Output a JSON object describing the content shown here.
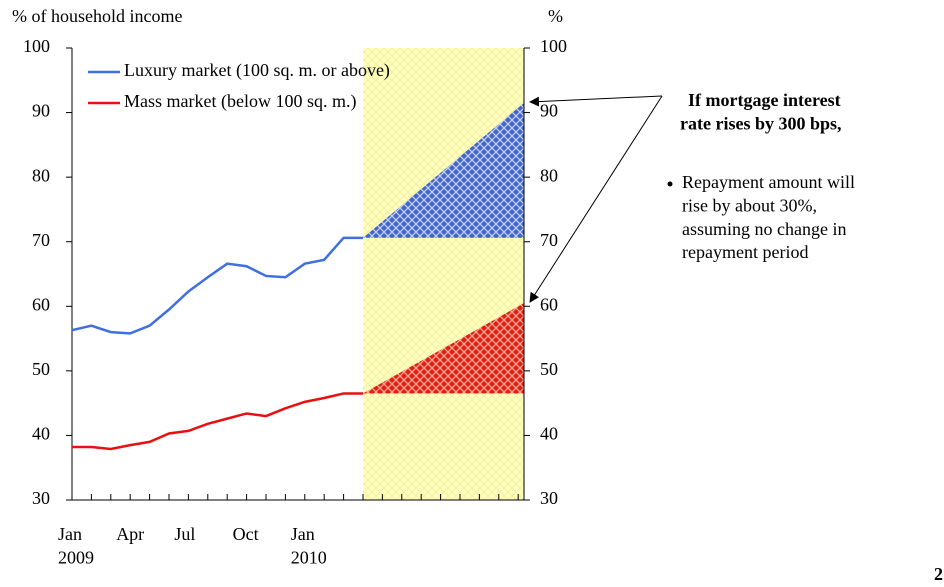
{
  "chart_data": {
    "type": "line",
    "y_axis_label": "% of household income",
    "y2_axis_label": "%",
    "categories": [
      "Jan 2009",
      null,
      null,
      "Apr",
      null,
      null,
      "Jul",
      null,
      null,
      "Oct",
      null,
      null,
      "Jan 2010",
      null,
      null,
      null,
      null,
      null,
      null,
      null,
      null,
      null,
      null,
      null
    ],
    "series": [
      {
        "name": "Luxury market (100 sq. m. or above)",
        "color": "#3f6fe0",
        "values": [
          56.3,
          57.0,
          56.0,
          55.8,
          57.0,
          59.5,
          62.3,
          64.5,
          66.6,
          66.2,
          64.7,
          64.5,
          66.6,
          67.2,
          70.6,
          70.6,
          null,
          null,
          null,
          null,
          null,
          null,
          null,
          null
        ],
        "projection": [
          70.6,
          91.5
        ],
        "projection_color": "#4466cc"
      },
      {
        "name": "Mass market (below 100 sq. m.)",
        "color": "#e81010",
        "values": [
          38.2,
          38.2,
          37.9,
          38.5,
          39.0,
          40.3,
          40.7,
          41.8,
          42.6,
          43.4,
          43.0,
          44.2,
          45.2,
          45.8,
          46.5,
          46.5,
          null,
          null,
          null,
          null,
          null,
          null,
          null,
          null
        ],
        "projection": [
          46.5,
          60.5
        ],
        "projection_color": "#e02010"
      }
    ],
    "ylim": [
      30,
      100
    ],
    "yticks": [
      30,
      40,
      50,
      60,
      70,
      80,
      90,
      100
    ],
    "y2lim": [
      30,
      100
    ],
    "y2ticks": [
      30,
      40,
      50,
      60,
      70,
      80,
      90,
      100
    ],
    "legend": "upper left",
    "projection_background": "#ffffc0",
    "annotation_title": "If mortgage interest rate rises by 300 bps,",
    "annotation_bullet": "Repayment amount will rise by about 30%, assuming no change in repayment period",
    "page_number": "2"
  }
}
